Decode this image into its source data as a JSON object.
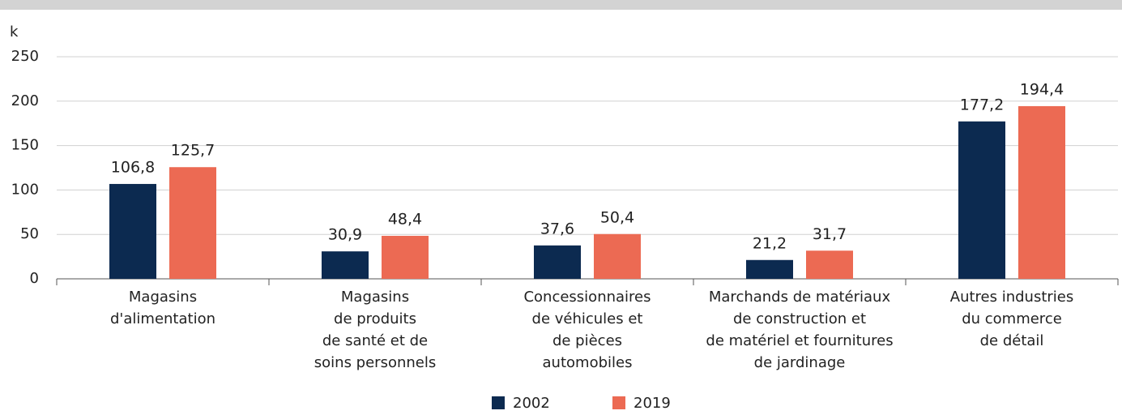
{
  "chart_data": {
    "type": "bar",
    "y_label": "k",
    "categories": [
      [
        "Magasins",
        "d'alimentation"
      ],
      [
        "Magasins",
        "de produits",
        "de santé et de",
        "soins personnels"
      ],
      [
        "Concessionnaires",
        "de véhicules et",
        "de pièces",
        "automobiles"
      ],
      [
        "Marchands de matériaux",
        "de construction et",
        "de matériel et fournitures",
        "de jardinage"
      ],
      [
        "Autres industries",
        "du commerce",
        "de détail"
      ]
    ],
    "series": [
      {
        "name": "2002",
        "color": "#0c2a50",
        "values": [
          106.8,
          30.9,
          37.6,
          21.2,
          177.2
        ],
        "value_labels": [
          "106,8",
          "30,9",
          "37,6",
          "21,2",
          "177,2"
        ]
      },
      {
        "name": "2019",
        "color": "#ec6a53",
        "values": [
          125.7,
          48.4,
          50.4,
          31.7,
          194.4
        ],
        "value_labels": [
          "125,7",
          "48,4",
          "50,4",
          "31,7",
          "194,4"
        ]
      }
    ],
    "ylim": [
      0,
      250
    ],
    "yticks": [
      0,
      50,
      100,
      150,
      200,
      250
    ],
    "grid": true
  }
}
